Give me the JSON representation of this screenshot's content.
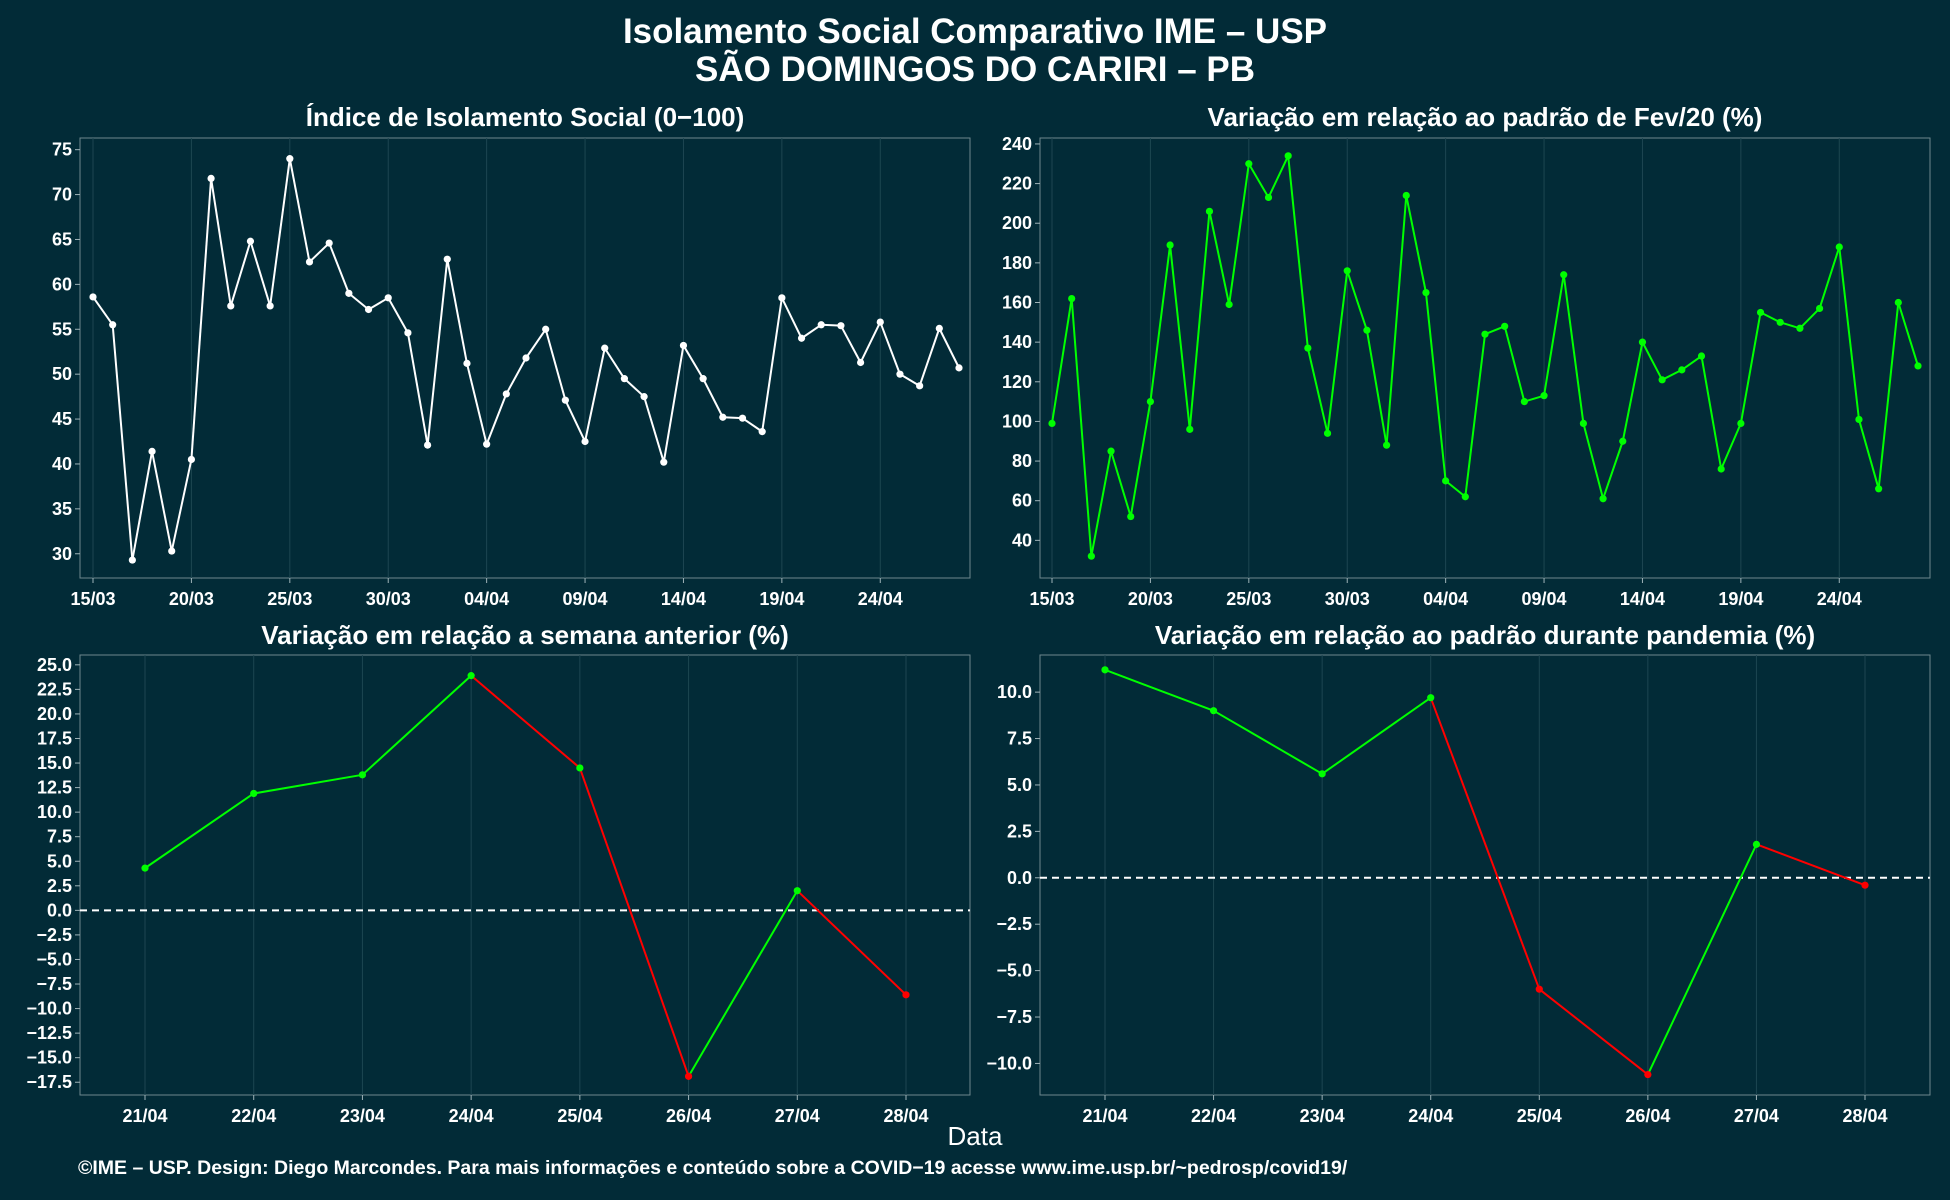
{
  "title_line1": "Isolamento Social Comparativo IME – USP",
  "title_line2": "SÃO DOMINGOS DO CARIRI – PB",
  "x_axis_label": "Data",
  "footer": "©IME – USP. Design: Diego Marcondes. Para mais informações e conteúdo sobre a COVID−19 acesse www.ime.usp.br/~pedrosp/covid19/",
  "colors": {
    "background": "#022b37",
    "white_series": "#ffffff",
    "green_series": "#00ff00",
    "red_series": "#ff0000",
    "grid": "#1d4651"
  },
  "chart_data": [
    {
      "id": "p1",
      "type": "line",
      "title": "Índice de Isolamento Social (0−100)",
      "x_tick_labels": [
        "15/03",
        "20/03",
        "25/03",
        "30/03",
        "04/04",
        "09/04",
        "14/04",
        "19/04",
        "24/04"
      ],
      "x_tick_indices": [
        0,
        5,
        10,
        15,
        20,
        25,
        30,
        35,
        40
      ],
      "y_ticks": [
        30,
        35,
        40,
        45,
        50,
        55,
        60,
        65,
        70,
        75
      ],
      "ylim": [
        27.3,
        76.3
      ],
      "x_count": 45,
      "series": [
        {
          "color": "white",
          "values": [
            58.6,
            55.5,
            29.3,
            41.4,
            30.3,
            40.5,
            71.8,
            57.6,
            64.8,
            57.6,
            74.0,
            62.5,
            64.6,
            59.0,
            57.2,
            58.5,
            54.6,
            42.1,
            62.8,
            51.2,
            42.2,
            47.8,
            51.8,
            55.0,
            47.1,
            42.5,
            52.9,
            49.5,
            47.5,
            40.2,
            53.2,
            49.5,
            45.2,
            45.1,
            43.6,
            58.5,
            54.0,
            55.5,
            55.4,
            51.3,
            55.8,
            50.0,
            48.7,
            55.1,
            50.7
          ]
        }
      ]
    },
    {
      "id": "p2",
      "type": "line",
      "title": "Variação em relação ao padrão de Fev/20 (%)",
      "x_tick_labels": [
        "15/03",
        "20/03",
        "25/03",
        "30/03",
        "04/04",
        "09/04",
        "14/04",
        "19/04",
        "24/04"
      ],
      "x_tick_indices": [
        0,
        5,
        10,
        15,
        20,
        25,
        30,
        35,
        40
      ],
      "y_ticks": [
        40,
        60,
        80,
        100,
        120,
        140,
        160,
        180,
        200,
        220,
        240
      ],
      "ylim": [
        21,
        243
      ],
      "x_count": 45,
      "series": [
        {
          "color": "green",
          "values": [
            99,
            162,
            32,
            85,
            52,
            110,
            189,
            96,
            206,
            159,
            230,
            213,
            234,
            137,
            94,
            176,
            146,
            88,
            214,
            165,
            70,
            62,
            144,
            148,
            110,
            113,
            174,
            99,
            61,
            90,
            140,
            121,
            126,
            133,
            76,
            99,
            155,
            150,
            147,
            157,
            188,
            101,
            66,
            160,
            128
          ]
        }
      ]
    },
    {
      "id": "p3",
      "type": "line",
      "title": "Variação em relação a semana anterior (%)",
      "x_tick_labels": [
        "21/04",
        "22/04",
        "23/04",
        "24/04",
        "25/04",
        "26/04",
        "27/04",
        "28/04"
      ],
      "y_ticks": [
        -17.5,
        -15.0,
        -12.5,
        -10.0,
        -7.5,
        -5.0,
        -2.5,
        0.0,
        2.5,
        5.0,
        7.5,
        10.0,
        12.5,
        15.0,
        17.5,
        20.0,
        22.5,
        25.0
      ],
      "y_tick_labels": [
        "−17.5",
        "−15.0",
        "−12.5",
        "−10.0",
        "−7.5",
        "−5.0",
        "−2.5",
        "0.0",
        "2.5",
        "5.0",
        "7.5",
        "10.0",
        "12.5",
        "15.0",
        "17.5",
        "20.0",
        "22.5",
        "25.0"
      ],
      "ylim": [
        -18.8,
        26.0
      ],
      "reference_line": 0,
      "series": [
        {
          "values": [
            4.3,
            11.9,
            13.8,
            23.9,
            14.5,
            -16.9,
            2.0,
            -8.6
          ],
          "segment_colors": [
            "green",
            "green",
            "green",
            "red",
            "red",
            "green",
            "red"
          ],
          "point_colors": [
            "green",
            "green",
            "green",
            "green",
            "green",
            "red",
            "green",
            "red"
          ]
        }
      ]
    },
    {
      "id": "p4",
      "type": "line",
      "title": "Variação em relação ao padrão durante pandemia (%)",
      "x_tick_labels": [
        "21/04",
        "22/04",
        "23/04",
        "24/04",
        "25/04",
        "26/04",
        "27/04",
        "28/04"
      ],
      "y_ticks": [
        -10.0,
        -7.5,
        -5.0,
        -2.5,
        0.0,
        2.5,
        5.0,
        7.5,
        10.0
      ],
      "y_tick_labels": [
        "−10.0",
        "−7.5",
        "−5.0",
        "−2.5",
        "0.0",
        "2.5",
        "5.0",
        "7.5",
        "10.0"
      ],
      "ylim": [
        -11.7,
        12.0
      ],
      "reference_line": 0,
      "series": [
        {
          "values": [
            11.2,
            9.0,
            5.6,
            9.7,
            -6.0,
            -10.6,
            1.8,
            -0.4
          ],
          "segment_colors": [
            "green",
            "green",
            "green",
            "red",
            "red",
            "green",
            "red"
          ],
          "point_colors": [
            "green",
            "green",
            "green",
            "green",
            "red",
            "red",
            "green",
            "red"
          ]
        }
      ]
    }
  ]
}
